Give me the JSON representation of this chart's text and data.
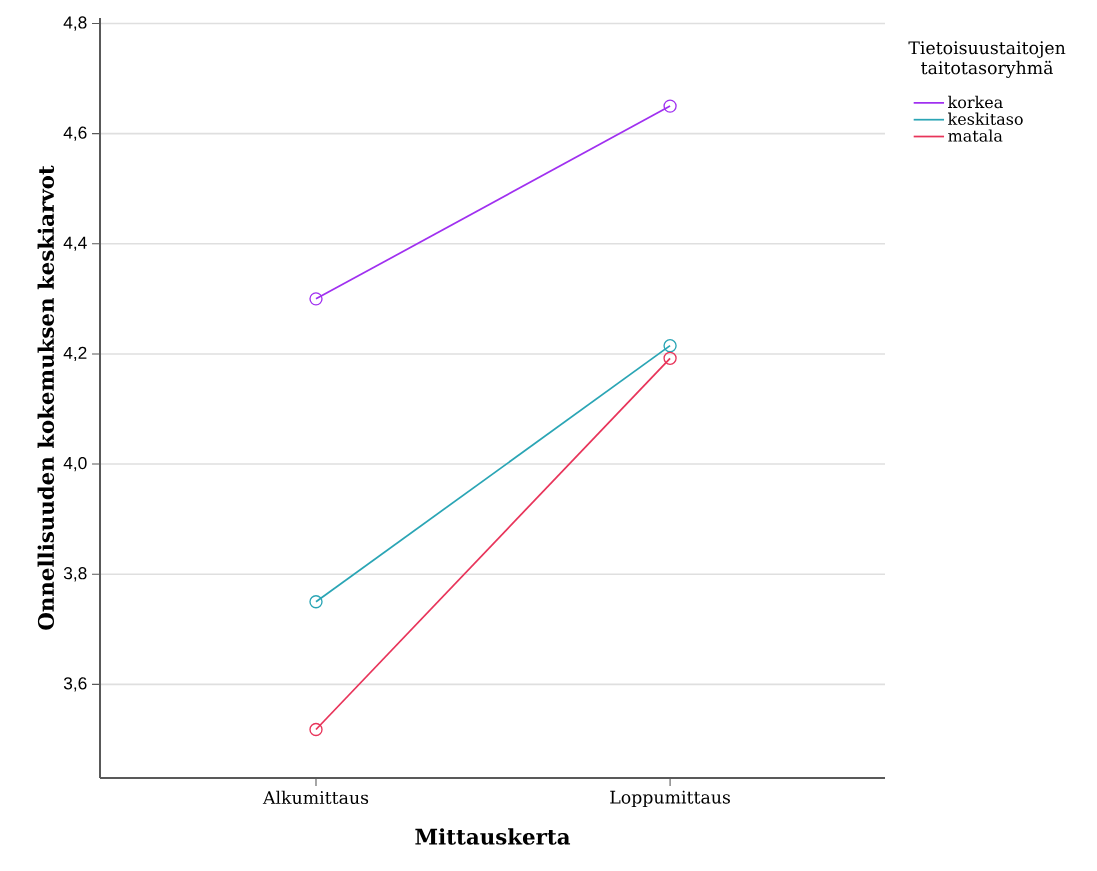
{
  "chart_data": {
    "type": "line",
    "xlabel": "Mittauskerta",
    "ylabel": "Onnellisuuden kokemuksen keskiarvot",
    "legend_title": "Tietoisuustaitojen taitotasoryhmä",
    "categories": [
      "Alkumittaus",
      "Loppumittaus"
    ],
    "series": [
      {
        "name": "korkea",
        "color": "#a030f0",
        "values": [
          4.3,
          4.65
        ]
      },
      {
        "name": "keskitaso",
        "color": "#2aa5b5",
        "values": [
          3.75,
          4.215
        ]
      },
      {
        "name": "matala",
        "color": "#e8345a",
        "values": [
          3.518,
          4.192
        ]
      }
    ],
    "ylim": [
      3.43,
      4.81
    ],
    "yticks": [
      {
        "value": 3.6,
        "label": "3,6"
      },
      {
        "value": 3.8,
        "label": "3,8"
      },
      {
        "value": 4.0,
        "label": "4,0"
      },
      {
        "value": 4.2,
        "label": "4,2"
      },
      {
        "value": 4.4,
        "label": "4,4"
      },
      {
        "value": 4.6,
        "label": "4,6"
      },
      {
        "value": 4.8,
        "label": "4,8"
      }
    ],
    "grid": "y",
    "legend": "top right",
    "marker": "circle",
    "line_style": "solid"
  }
}
